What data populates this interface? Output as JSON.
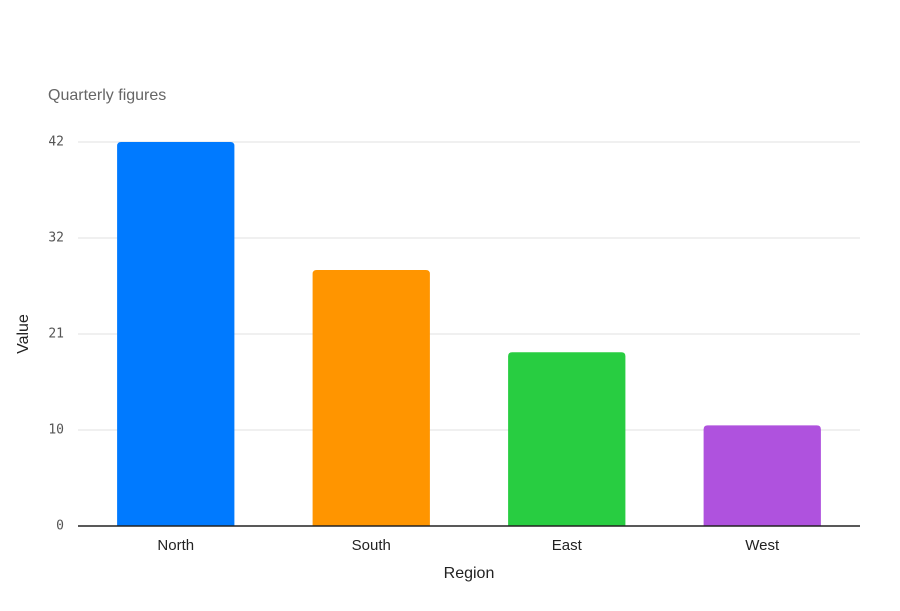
{
  "chart_data": {
    "type": "bar",
    "subtitle": "Quarterly figures",
    "x_label": "Region",
    "y_label": "Value",
    "categories": [
      "North",
      "South",
      "East",
      "West"
    ],
    "values": [
      42,
      28,
      19,
      11
    ],
    "colors": [
      "#007aff",
      "#ff9500",
      "#28cd41",
      "#af52de"
    ],
    "ylim": [
      0,
      42
    ],
    "yticks": [
      0,
      {
        "value": 10.5,
        "label": "10"
      },
      21,
      {
        "value": 31.5,
        "label": "32"
      },
      42
    ],
    "grid": true
  }
}
